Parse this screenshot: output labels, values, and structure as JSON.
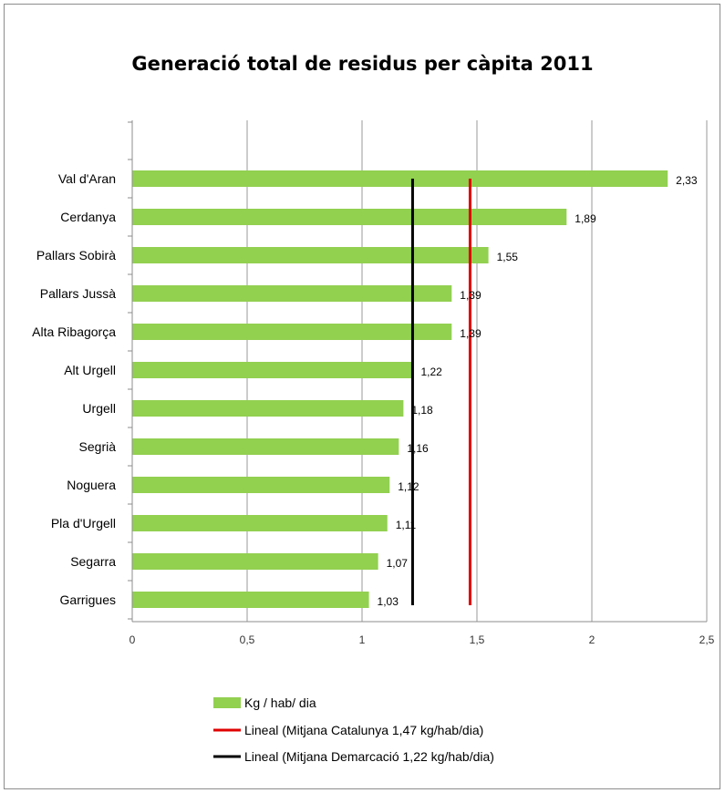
{
  "chart_data": {
    "type": "bar",
    "orientation": "horizontal",
    "title": "Generació total de residus per càpita 2011",
    "categories": [
      "Val d'Aran",
      "Cerdanya",
      "Pallars Sobirà",
      "Pallars Jussà",
      "Alta Ribagorça",
      "Alt Urgell",
      "Urgell",
      "Segrià",
      "Noguera",
      "Pla d'Urgell",
      "Segarra",
      "Garrigues"
    ],
    "values": [
      2.33,
      1.89,
      1.55,
      1.39,
      1.39,
      1.22,
      1.18,
      1.16,
      1.12,
      1.11,
      1.07,
      1.03
    ],
    "data_labels": [
      "2,33",
      "1,89",
      "1,55",
      "1,39",
      "1,39",
      "1,22",
      "1,18",
      "1,16",
      "1,12",
      "1,11",
      "1,07",
      "1,03"
    ],
    "xlim": [
      0,
      2.5
    ],
    "x_ticks": [
      0,
      0.5,
      1,
      1.5,
      2,
      2.5
    ],
    "x_tick_labels": [
      "0",
      "0,5",
      "1",
      "1,5",
      "2",
      "2,5"
    ],
    "grid": "vertical",
    "legend_position": "bottom",
    "series_name": "Kg / hab/ dia",
    "bar_color": "#92d050",
    "reference_lines": [
      {
        "name": "Lineal (Mitjana Catalunya 1,47 kg/hab/dia)",
        "value": 1.47,
        "color": "#e00000"
      },
      {
        "name": "Lineal (Mitjana Demarcació 1,22 kg/hab/dia)",
        "value": 1.22,
        "color": "#000000"
      }
    ]
  }
}
